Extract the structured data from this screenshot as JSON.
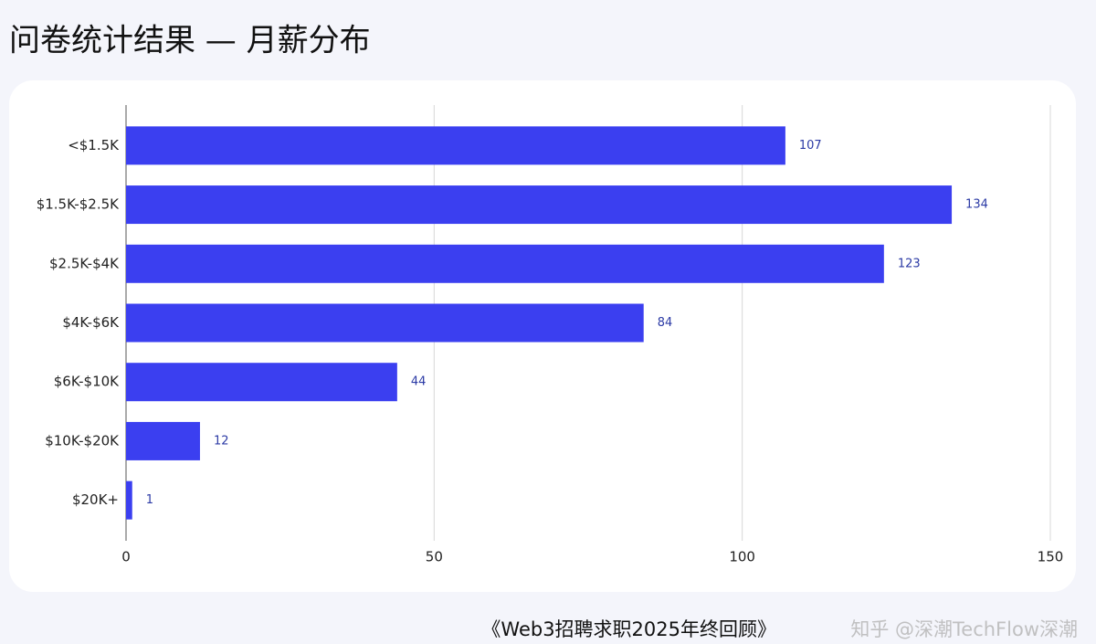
{
  "chart_data": {
    "type": "bar",
    "orientation": "horizontal",
    "title": "问卷统计结果 — 月薪分布",
    "categories": [
      "<$1.5K",
      "$1.5K-$2.5K",
      "$2.5K-$4K",
      "$4K-$6K",
      "$6K-$10K",
      "$10K-$20K",
      "$20K+"
    ],
    "values": [
      107,
      134,
      123,
      84,
      44,
      12,
      1
    ],
    "color": "#3b3ff0",
    "xlim": [
      0,
      150
    ],
    "xticks": [
      0,
      50,
      100,
      150
    ],
    "grid": true,
    "source": "《Web3招聘求职2025年终回顾》",
    "watermark": "知乎 @深潮TechFlow深潮"
  }
}
